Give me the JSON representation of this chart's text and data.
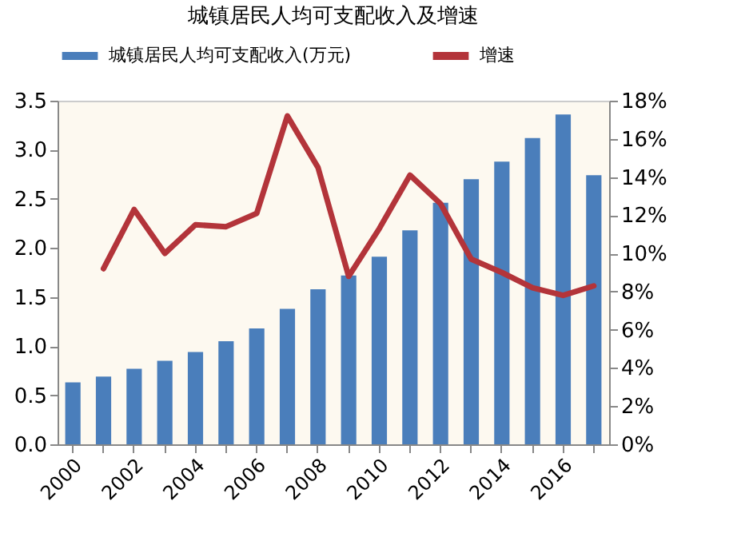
{
  "chart_data": {
    "type": "bar",
    "title": "城镇居民人均可支配收入及增速",
    "categories": [
      "2000",
      null,
      "2002",
      null,
      "2004",
      null,
      "2006",
      null,
      "2008",
      null,
      "2010",
      null,
      "2012",
      null,
      "2014",
      null,
      "2016",
      null
    ],
    "series": [
      {
        "name": "城镇居民人均可支配收入(万元)",
        "color": "#4a7ebb",
        "values": [
          0.63,
          0.69,
          0.77,
          0.85,
          0.94,
          1.05,
          1.18,
          1.38,
          1.58,
          1.72,
          1.91,
          2.18,
          2.46,
          2.7,
          2.88,
          3.12,
          3.36,
          2.74
        ]
      },
      {
        "name": "增速",
        "type": "line",
        "axis": "y2",
        "color": "#b3343a",
        "values": [
          null,
          9.2,
          12.3,
          10.0,
          11.5,
          11.4,
          12.1,
          17.2,
          14.5,
          8.8,
          11.3,
          14.1,
          12.6,
          9.7,
          9.0,
          8.2,
          7.8,
          8.3
        ]
      }
    ],
    "ylim": [
      0,
      3.5
    ],
    "yticks": [
      {
        "value": 0,
        "label": "0.0"
      },
      {
        "value": 0.5,
        "label": "0.5"
      },
      {
        "value": 1,
        "label": "1.0"
      },
      {
        "value": 1.5,
        "label": "1.5"
      },
      {
        "value": 2,
        "label": "2.0"
      },
      {
        "value": 2.5,
        "label": "2.5"
      },
      {
        "value": 3,
        "label": "3.0"
      },
      {
        "value": 3.5,
        "label": "3.5"
      }
    ],
    "y2lim": [
      0,
      18
    ],
    "y2ticks": [
      {
        "value": 0,
        "label": "0%"
      },
      {
        "value": 2,
        "label": "2%"
      },
      {
        "value": 4,
        "label": "4%"
      },
      {
        "value": 6,
        "label": "6%"
      },
      {
        "value": 8,
        "label": "8%"
      },
      {
        "value": 10,
        "label": "10%"
      },
      {
        "value": 12,
        "label": "12%"
      },
      {
        "value": 14,
        "label": "14%"
      },
      {
        "value": 16,
        "label": "16%"
      },
      {
        "value": 18,
        "label": "18%"
      }
    ],
    "grid": false,
    "legend": "top"
  }
}
